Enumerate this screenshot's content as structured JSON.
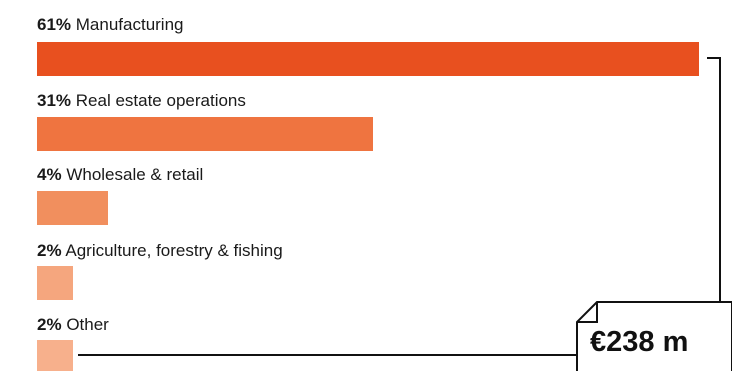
{
  "chart_data": {
    "type": "bar",
    "orientation": "horizontal",
    "unit": "%",
    "categories": [
      "Manufacturing",
      "Real estate operations",
      "Wholesale & retail",
      "Agriculture, forestry & fishing",
      "Other"
    ],
    "values": [
      61,
      31,
      4,
      2,
      2
    ],
    "value_labels": [
      "61%",
      "31%",
      "4%",
      "2%",
      "2%"
    ],
    "colors": [
      "#e8501f",
      "#ef7440",
      "#f18f5e",
      "#f5a67e",
      "#f7b08c"
    ],
    "total_label": "€238 m",
    "legend": "none",
    "grid": false
  }
}
